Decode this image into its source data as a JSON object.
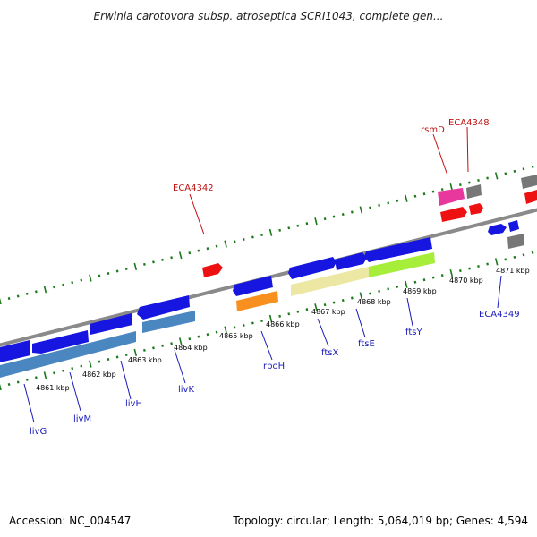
{
  "title": "Erwinia carotovora subsp. atroseptica SCRI1043, complete gen...",
  "footer": {
    "accession": "Accession: NC_004547",
    "stats": "Topology: circular; Length: 5,064,019 bp; Genes: 4,594"
  },
  "colors": {
    "blue": "#1616e0",
    "steel": "#4a86c0",
    "red": "#ee1111",
    "orange": "#f7901e",
    "cream": "#ece8a4",
    "lime": "#a7ee3a",
    "pink": "#e8389e",
    "gray": "#777777",
    "backbone": "#888888",
    "tick": "#1a7a1a",
    "label_blue": "#1a1ab8",
    "label_red": "#c01010"
  },
  "kbp_labels": [
    "4861 kbp",
    "4862 kbp",
    "4863 kbp",
    "4864 kbp",
    "4865 kbp",
    "4866 kbp",
    "4867 kbp",
    "4868 kbp",
    "4869 kbp",
    "4870 kbp",
    "4871 kbp"
  ],
  "gene_labels": [
    {
      "text": "livG",
      "color": "blue"
    },
    {
      "text": "livM",
      "color": "blue"
    },
    {
      "text": "livH",
      "color": "blue"
    },
    {
      "text": "livK",
      "color": "blue"
    },
    {
      "text": "rpoH",
      "color": "blue"
    },
    {
      "text": "ftsX",
      "color": "blue"
    },
    {
      "text": "ftsE",
      "color": "blue"
    },
    {
      "text": "ftsY",
      "color": "blue"
    },
    {
      "text": "ECA4349",
      "color": "blue"
    },
    {
      "text": "ECA4342",
      "color": "red"
    },
    {
      "text": "rsmD",
      "color": "red"
    },
    {
      "text": "ECA4348",
      "color": "red"
    }
  ]
}
